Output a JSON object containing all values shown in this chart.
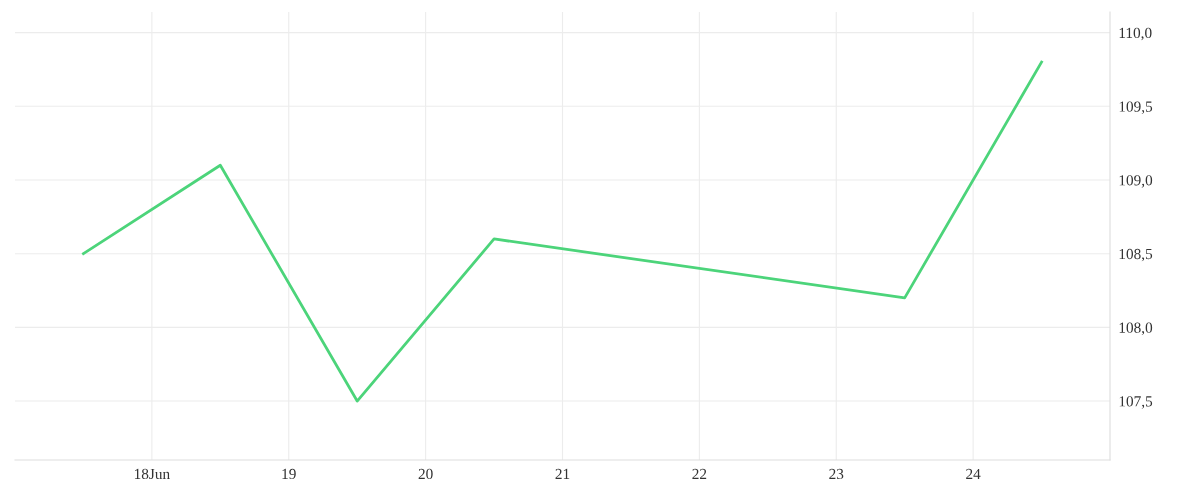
{
  "chart_data": {
    "type": "line",
    "x": [
      17.5,
      18.5,
      19.5,
      20.5,
      23.5,
      24.5
    ],
    "series": [
      {
        "color": "#4cd47a",
        "values": [
          108.5,
          109.1,
          107.5,
          108.6,
          108.2,
          109.8
        ]
      }
    ],
    "xlim": [
      17,
      25
    ],
    "xticks": [
      {
        "value": 18,
        "label": "18Jun"
      },
      19,
      20,
      21,
      22,
      23,
      24
    ],
    "ylim": [
      107.1,
      110.14
    ],
    "yticks": [
      {
        "value": 107.5,
        "label": "107,5"
      },
      {
        "value": 108,
        "label": "108,0"
      },
      {
        "value": 108.5,
        "label": "108,5"
      },
      {
        "value": 109,
        "label": "109,0"
      },
      {
        "value": 109.5,
        "label": "109,5"
      },
      {
        "value": 110,
        "label": "110,0"
      }
    ],
    "grid": true,
    "marker": "none",
    "line_style": "solid"
  }
}
